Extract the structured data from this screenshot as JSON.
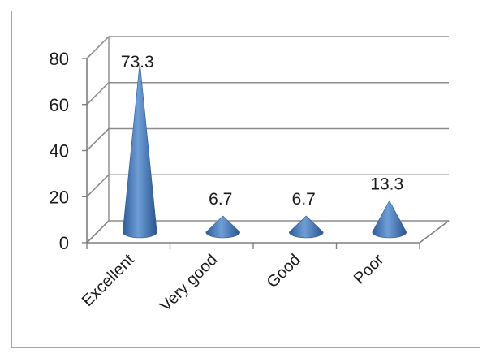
{
  "chart_data": {
    "type": "bar",
    "style": "3d-cone",
    "categories": [
      "Excellent",
      "Very good",
      "Good",
      "Poor"
    ],
    "values": [
      73.3,
      6.7,
      6.7,
      13.3
    ],
    "data_labels": [
      "73.3",
      "6.7",
      "6.7",
      "13.3"
    ],
    "ylim": [
      0,
      80
    ],
    "yticks": [
      "0",
      "20",
      "40",
      "60",
      "80"
    ],
    "ytick_values": [
      0,
      20,
      40,
      60,
      80
    ],
    "grid": true,
    "legend": "none",
    "color": "#4f81bd"
  }
}
